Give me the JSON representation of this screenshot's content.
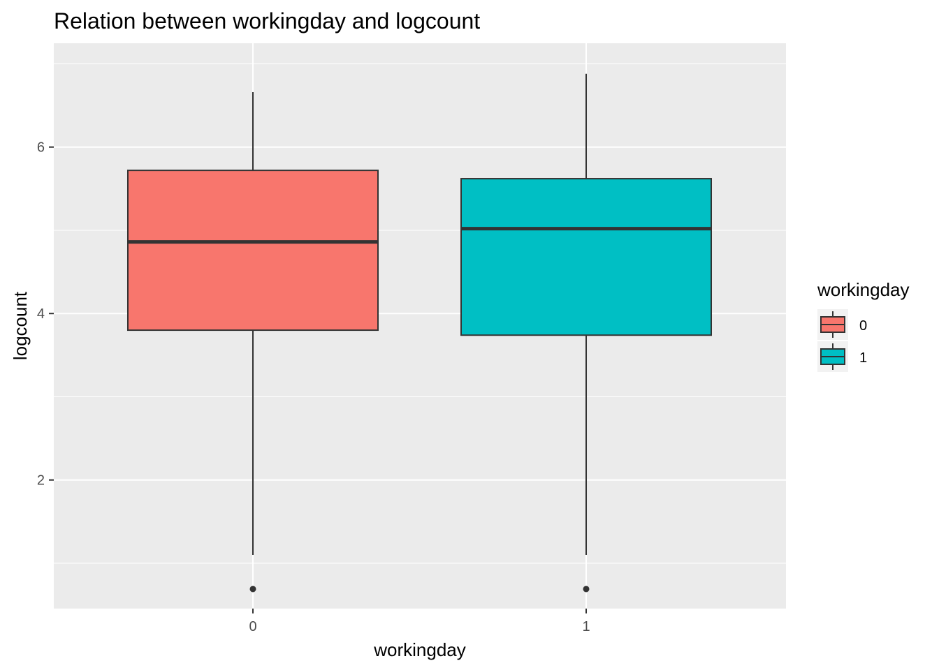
{
  "chart_data": {
    "type": "boxplot",
    "title": "Relation between workingday and logcount",
    "xlabel": "workingday",
    "ylabel": "logcount",
    "categories": [
      "0",
      "1"
    ],
    "ylim": [
      0.5,
      7.0
    ],
    "y_ticks": [
      2,
      4,
      6
    ],
    "y_tick_labels": [
      "2",
      "4",
      "6"
    ],
    "grid": true,
    "background": "#EBEBEB",
    "legend": {
      "title": "workingday",
      "placement": "right",
      "entries": [
        "0",
        "1"
      ]
    },
    "boxes": [
      {
        "category": "0",
        "fill": "#F8766D",
        "whisker_low": 1.1,
        "q1": 3.8,
        "median": 4.86,
        "q3": 5.72,
        "whisker_high": 6.66,
        "outliers": [
          0.69
        ]
      },
      {
        "category": "1",
        "fill": "#00BFC4",
        "whisker_low": 1.1,
        "q1": 3.74,
        "median": 5.02,
        "q3": 5.62,
        "whisker_high": 6.88,
        "outliers": [
          0.69
        ]
      }
    ]
  }
}
